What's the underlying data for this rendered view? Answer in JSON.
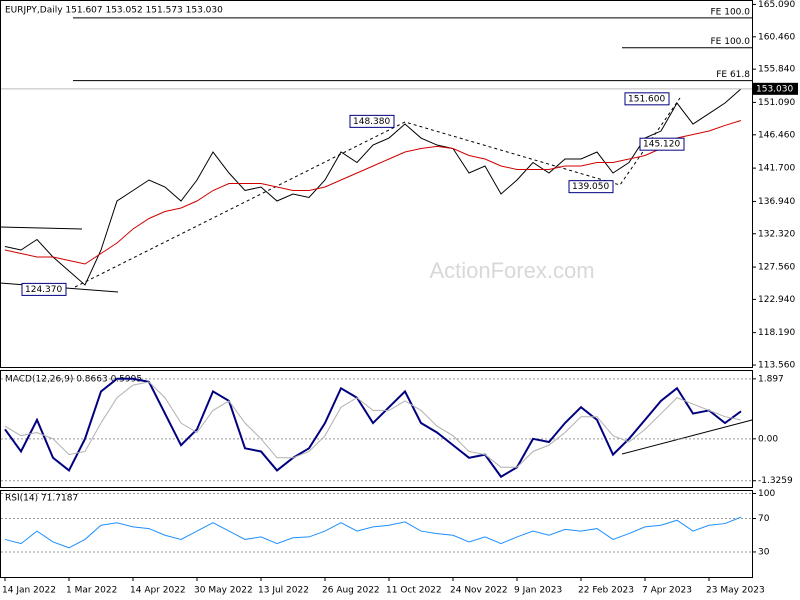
{
  "watermark": "ActionForex.com",
  "chart_data": [
    {
      "type": "line",
      "title": "EURJPY,Daily  151.607 153.052 151.573 153.030",
      "ylim": [
        113.28,
        165.58
      ],
      "yticks": [
        {
          "value": 113.56,
          "label": "113.560"
        },
        {
          "value": 118.19,
          "label": "118.190"
        },
        {
          "value": 122.94,
          "label": "122.940"
        },
        {
          "value": 127.56,
          "label": "127.560"
        },
        {
          "value": 132.32,
          "label": "132.320"
        },
        {
          "value": 136.94,
          "label": "136.940"
        },
        {
          "value": 141.7,
          "label": "141.700"
        },
        {
          "value": 146.46,
          "label": "146.460"
        },
        {
          "value": 151.09,
          "label": "151.090"
        },
        {
          "value": 155.84,
          "label": "155.840"
        },
        {
          "value": 160.46,
          "label": "160.460"
        },
        {
          "value": 165.09,
          "label": "165.090"
        }
      ],
      "series": [
        {
          "color": "#000000",
          "values": [
            130.5,
            130,
            131.5,
            129,
            127,
            125,
            130,
            137,
            138.5,
            140,
            139,
            137,
            140,
            144,
            141,
            138.5,
            139,
            137,
            138,
            137.5,
            140,
            144,
            142.5,
            145,
            146,
            148,
            146,
            145,
            144.5,
            141,
            142,
            138,
            140,
            142.5,
            141,
            143,
            143,
            144,
            141,
            142.5,
            146,
            147,
            151,
            148,
            149.5,
            151,
            153.03
          ]
        },
        {
          "color": "#d00000",
          "values": [
            130,
            129.5,
            129,
            129,
            128.5,
            128,
            129.5,
            131,
            133,
            134.5,
            135.5,
            136,
            137,
            138.5,
            139.5,
            139.5,
            139.5,
            139,
            138.5,
            138.5,
            139,
            140,
            141,
            142,
            143,
            144,
            144.5,
            144.8,
            144.5,
            143.5,
            143,
            142,
            141.5,
            141.5,
            141.5,
            142,
            142,
            142.5,
            142.5,
            143,
            143.5,
            144.5,
            146,
            146.5,
            147,
            147.8,
            148.5
          ]
        }
      ],
      "levels": [
        {
          "value": 163.16,
          "label": "FE 100.0"
        },
        {
          "value": 158.9,
          "label": "FE 100.0"
        },
        {
          "value": 154.2,
          "label": "FE 61.8"
        }
      ],
      "annotations": [
        {
          "value": 148.38,
          "label": "148.380"
        },
        {
          "value": 151.6,
          "label": "151.600"
        },
        {
          "value": 139.05,
          "label": "139.050"
        },
        {
          "value": 124.37,
          "label": "124.370"
        },
        {
          "value": 145.12,
          "label": "145.120"
        }
      ],
      "last_price": {
        "value": 153.03,
        "label": "153.030"
      }
    },
    {
      "type": "line",
      "title": "MACD(12,26,9) 0.8663 0.5995",
      "ylim": [
        -1.524,
        2.146
      ],
      "yticks": [
        -1.3259,
        {
          "value": 0,
          "label": "0.00"
        },
        1.897
      ],
      "series": [
        {
          "color": "#000080",
          "values": [
            0.3,
            -0.4,
            0.6,
            -0.6,
            -1.0,
            0,
            1.5,
            1.9,
            1.9,
            1.8,
            0.8,
            -0.2,
            0.3,
            1.5,
            1.2,
            -0.3,
            -0.4,
            -1.0,
            -0.6,
            -0.3,
            0.5,
            1.6,
            1.3,
            0.5,
            1.0,
            1.5,
            0.5,
            0.2,
            -0.2,
            -0.6,
            -0.5,
            -1.2,
            -0.9,
            0.0,
            -0.1,
            0.5,
            1.0,
            0.6,
            -0.5,
            0,
            0.6,
            1.2,
            1.6,
            0.8,
            0.9,
            0.5,
            0.87
          ]
        },
        {
          "color": "#b0b0b0",
          "values": [
            0.4,
            0.1,
            0.2,
            0.0,
            -0.5,
            -0.4,
            0.5,
            1.3,
            1.7,
            1.8,
            1.3,
            0.5,
            0.2,
            0.9,
            1.2,
            0.5,
            0,
            -0.6,
            -0.6,
            -0.4,
            0.1,
            1.0,
            1.3,
            0.9,
            0.9,
            1.2,
            0.9,
            0.4,
            0.1,
            -0.4,
            -0.5,
            -0.9,
            -0.9,
            -0.4,
            -0.2,
            0.2,
            0.7,
            0.7,
            0.1,
            -0.1,
            0.3,
            0.8,
            1.3,
            1.1,
            0.9,
            0.7,
            0.6
          ]
        }
      ]
    },
    {
      "type": "line",
      "title": "RSI(14) 71.7187",
      "ylim": [
        0,
        103
      ],
      "yticks": [
        30,
        70,
        100
      ],
      "categories": [
        "14 Jan 2022",
        null,
        null,
        null,
        "1 Mar 2022",
        null,
        null,
        null,
        "14 Apr 2022",
        null,
        null,
        null,
        "30 May 2022",
        null,
        null,
        null,
        "13 Jul 2022",
        null,
        null,
        null,
        "26 Aug 2022",
        null,
        null,
        null,
        "11 Oct 2022",
        null,
        null,
        null,
        "24 Nov 2022",
        null,
        null,
        null,
        "9 Jan 2023",
        null,
        null,
        null,
        "22 Feb 2023",
        null,
        null,
        null,
        "7 Apr 2023",
        null,
        null,
        null,
        "23 May 2023",
        null,
        null
      ],
      "series": [
        {
          "color": "#1e90ff",
          "values": [
            45,
            40,
            55,
            42,
            35,
            45,
            62,
            65,
            60,
            58,
            50,
            45,
            55,
            65,
            55,
            45,
            48,
            40,
            47,
            48,
            55,
            65,
            55,
            60,
            62,
            66,
            55,
            52,
            50,
            42,
            48,
            40,
            48,
            55,
            50,
            57,
            55,
            58,
            45,
            52,
            60,
            62,
            68,
            55,
            62,
            64,
            71.72
          ]
        }
      ]
    }
  ]
}
